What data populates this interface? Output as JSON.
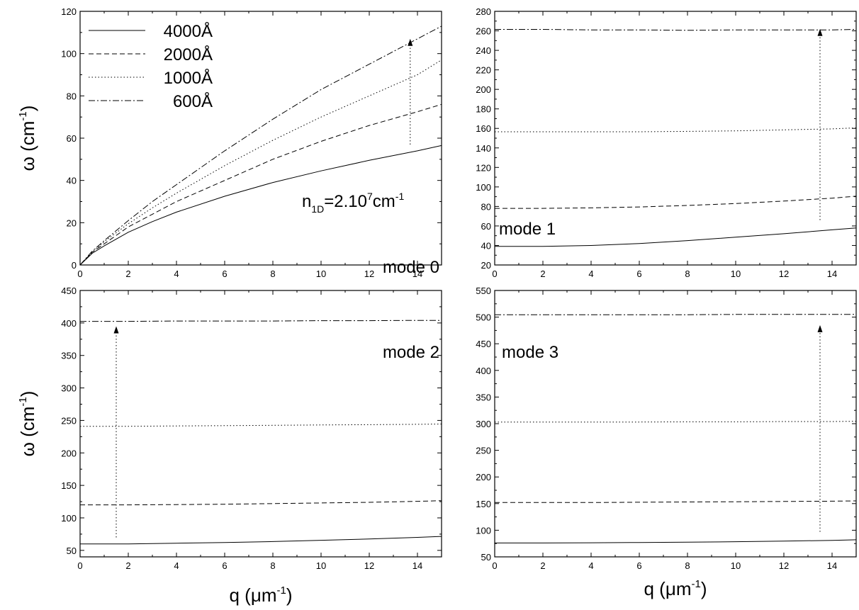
{
  "chart_data": [
    {
      "type": "line",
      "panel": "top-left",
      "annotation": "mode 0",
      "extra_annotation": {
        "base": "n",
        "sub": "1D",
        "mid": "=2.10",
        "sup": "7",
        "tail": "cm",
        "tail_sup": "-1"
      },
      "ylabel": {
        "base": "ω (cm",
        "sup": "-1",
        "close": ")"
      },
      "xlabel": "",
      "xlim": [
        0,
        15
      ],
      "ylim": [
        0,
        120
      ],
      "xticks": [
        0,
        2,
        4,
        6,
        8,
        10,
        12,
        14
      ],
      "yticks": [
        0,
        20,
        40,
        60,
        80,
        100,
        120
      ],
      "legend": {
        "position": "top-left",
        "entries": [
          "4000Å",
          "2000Å",
          "1000Å",
          "600Å"
        ]
      },
      "arrow": {
        "x": 13.7,
        "y_from": 57,
        "y_to": 107
      },
      "series": [
        {
          "name": "4000Å",
          "style": "solid",
          "x": [
            0,
            0.5,
            1,
            2,
            3,
            4,
            6,
            8,
            10,
            12,
            14,
            15
          ],
          "y": [
            0,
            5.5,
            9,
            15.5,
            20.5,
            25,
            32.5,
            39,
            44.5,
            49.5,
            54,
            56.5
          ]
        },
        {
          "name": "2000Å",
          "style": "dashed",
          "x": [
            0,
            0.5,
            1,
            2,
            3,
            4,
            6,
            8,
            10,
            12,
            14,
            15
          ],
          "y": [
            0,
            6,
            10,
            18,
            24,
            30,
            40,
            50,
            58.5,
            66,
            72.5,
            76
          ]
        },
        {
          "name": "1000Å",
          "style": "dotted",
          "x": [
            0,
            0.5,
            1,
            2,
            3,
            4,
            6,
            8,
            10,
            12,
            14,
            15
          ],
          "y": [
            0,
            6,
            11,
            19.5,
            27,
            34,
            47,
            59,
            70,
            80,
            90,
            97
          ]
        },
        {
          "name": "600Å",
          "style": "dashdot",
          "x": [
            0,
            0.5,
            1,
            2,
            3,
            4,
            6,
            8,
            10,
            12,
            14,
            15
          ],
          "y": [
            0,
            6.5,
            11.5,
            21,
            30,
            38,
            54,
            69,
            83,
            95,
            107,
            113
          ]
        }
      ]
    },
    {
      "type": "line",
      "panel": "top-right",
      "annotation": "mode 1",
      "ylabel": null,
      "xlabel": "",
      "xlim": [
        0,
        15
      ],
      "ylim": [
        20,
        280
      ],
      "xticks": [
        0,
        2,
        4,
        6,
        8,
        10,
        12,
        14
      ],
      "yticks": [
        20,
        40,
        60,
        80,
        100,
        120,
        140,
        160,
        180,
        200,
        220,
        240,
        260,
        280
      ],
      "arrow": {
        "x": 13.5,
        "y_from": 66,
        "y_to": 262
      },
      "series": [
        {
          "name": "4000Å",
          "style": "solid",
          "x": [
            0,
            2,
            4,
            6,
            8,
            10,
            12,
            14,
            15
          ],
          "y": [
            39,
            39,
            40,
            42,
            45,
            48.5,
            52,
            56,
            58
          ]
        },
        {
          "name": "2000Å",
          "style": "dashed",
          "x": [
            0,
            2,
            4,
            6,
            8,
            10,
            12,
            14,
            15
          ],
          "y": [
            78,
            78,
            78.5,
            79.5,
            81,
            83,
            85.5,
            88.5,
            90.5
          ]
        },
        {
          "name": "1000Å",
          "style": "dotted",
          "x": [
            0,
            2,
            4,
            6,
            8,
            10,
            12,
            14,
            15
          ],
          "y": [
            156.5,
            156.5,
            156.5,
            156.5,
            157,
            157.5,
            158.5,
            159.5,
            160.5
          ]
        },
        {
          "name": "600Å",
          "style": "dashdot",
          "x": [
            0,
            2,
            4,
            6,
            8,
            10,
            12,
            14,
            15
          ],
          "y": [
            261.5,
            261.5,
            261,
            261,
            260.5,
            261,
            261,
            261,
            261.5
          ]
        }
      ]
    },
    {
      "type": "line",
      "panel": "bottom-left",
      "annotation": "mode 2",
      "ylabel": {
        "base": "ω (cm",
        "sup": "-1",
        "close": ")"
      },
      "xlabel": {
        "base": "q (μm",
        "sup": "-1",
        "close": ")"
      },
      "xlim": [
        0,
        15
      ],
      "ylim": [
        40,
        450
      ],
      "xticks": [
        0,
        2,
        4,
        6,
        8,
        10,
        12,
        14
      ],
      "yticks": [
        50,
        100,
        150,
        200,
        250,
        300,
        350,
        400,
        450
      ],
      "arrow": {
        "x": 1.5,
        "y_from": 70,
        "y_to": 395
      },
      "series": [
        {
          "name": "4000Å",
          "style": "solid",
          "x": [
            0,
            2,
            4,
            6,
            8,
            10,
            12,
            14,
            15
          ],
          "y": [
            60,
            60,
            61,
            62,
            63.5,
            65.5,
            67.5,
            70,
            71.5
          ]
        },
        {
          "name": "2000Å",
          "style": "dashed",
          "x": [
            0,
            2,
            4,
            6,
            8,
            10,
            12,
            14,
            15
          ],
          "y": [
            120,
            120,
            120.5,
            121,
            122,
            123,
            124,
            125.5,
            126.5
          ]
        },
        {
          "name": "1000Å",
          "style": "dotted",
          "x": [
            0,
            2,
            4,
            6,
            8,
            10,
            12,
            14,
            15
          ],
          "y": [
            241,
            241,
            241.5,
            242,
            242.5,
            243,
            243.5,
            244,
            244.5
          ]
        },
        {
          "name": "600Å",
          "style": "dashdot",
          "x": [
            0,
            2,
            4,
            6,
            8,
            10,
            12,
            14,
            15
          ],
          "y": [
            402.5,
            402.5,
            403,
            403,
            403,
            403.5,
            403.5,
            404,
            404
          ]
        }
      ]
    },
    {
      "type": "line",
      "panel": "bottom-right",
      "annotation": "mode 3",
      "ylabel": null,
      "xlabel": {
        "base": "q (μm",
        "sup": "-1",
        "close": ")"
      },
      "xlim": [
        0,
        15
      ],
      "ylim": [
        50,
        550
      ],
      "xticks": [
        0,
        2,
        4,
        6,
        8,
        10,
        12,
        14
      ],
      "yticks": [
        50,
        100,
        150,
        200,
        250,
        300,
        350,
        400,
        450,
        500,
        550
      ],
      "arrow": {
        "x": 13.5,
        "y_from": 97,
        "y_to": 485
      },
      "series": [
        {
          "name": "4000Å",
          "style": "solid",
          "x": [
            0,
            2,
            4,
            6,
            8,
            10,
            12,
            14,
            15
          ],
          "y": [
            76,
            76,
            76.5,
            77,
            77.5,
            78.5,
            79.5,
            81,
            82
          ]
        },
        {
          "name": "2000Å",
          "style": "dashed",
          "x": [
            0,
            2,
            4,
            6,
            8,
            10,
            12,
            14,
            15
          ],
          "y": [
            152,
            152,
            152,
            152.5,
            153,
            153.5,
            154,
            154.5,
            155
          ]
        },
        {
          "name": "1000Å",
          "style": "dotted",
          "x": [
            0,
            2,
            4,
            6,
            8,
            10,
            12,
            14,
            15
          ],
          "y": [
            303,
            303,
            303,
            303,
            303.5,
            303.5,
            304,
            304,
            304.5
          ]
        },
        {
          "name": "600Å",
          "style": "dashdot",
          "x": [
            0,
            2,
            4,
            6,
            8,
            10,
            12,
            14,
            15
          ],
          "y": [
            504.5,
            504.5,
            504.5,
            504.5,
            504.5,
            505,
            505,
            505,
            505
          ]
        }
      ]
    }
  ]
}
